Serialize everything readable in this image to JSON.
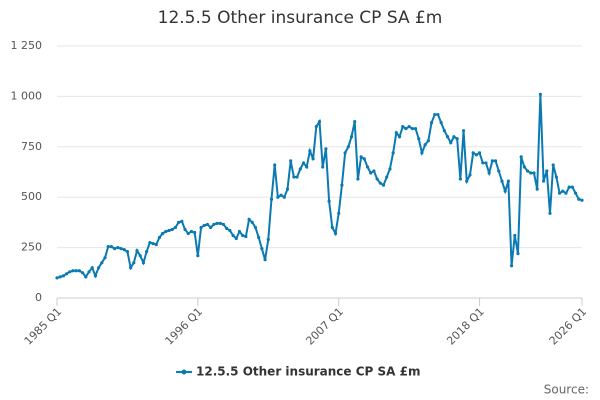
{
  "chart_data": {
    "type": "line",
    "title": "12.5.5 Other insurance CP SA £m",
    "categories": [
      "1985 Q1",
      null,
      null,
      null,
      null,
      null,
      null,
      null,
      null,
      null,
      null,
      null,
      null,
      null,
      null,
      null,
      null,
      null,
      null,
      null,
      null,
      null,
      null,
      null,
      null,
      null,
      null,
      null,
      null,
      null,
      null,
      null,
      null,
      null,
      null,
      null,
      null,
      null,
      null,
      null,
      null,
      null,
      null,
      null,
      "1996 Q1",
      null,
      null,
      null,
      null,
      null,
      null,
      null,
      null,
      null,
      null,
      null,
      null,
      null,
      null,
      null,
      null,
      null,
      null,
      null,
      null,
      null,
      null,
      null,
      null,
      null,
      null,
      null,
      null,
      null,
      null,
      null,
      null,
      null,
      null,
      null,
      null,
      null,
      null,
      null,
      null,
      null,
      null,
      null,
      "2007 Q1",
      null,
      null,
      null,
      null,
      null,
      null,
      null,
      null,
      null,
      null,
      null,
      null,
      null,
      null,
      null,
      null,
      null,
      null,
      null,
      null,
      null,
      null,
      null,
      null,
      null,
      null,
      null,
      null,
      null,
      null,
      null,
      null,
      null,
      null,
      null,
      null,
      null,
      null,
      null,
      null,
      null,
      null,
      null,
      "2018 Q1",
      null,
      null,
      null,
      null,
      null,
      null,
      null,
      null,
      null,
      null,
      null,
      null,
      null,
      null,
      null,
      null,
      null,
      null,
      null,
      null,
      null,
      null,
      null,
      null,
      null,
      null,
      null,
      null,
      null,
      null,
      null,
      "2026 Q1"
    ],
    "series": [
      {
        "name": "12.5.5 Other insurance CP SA £m",
        "color": "#0b7ab3",
        "values": [
          100,
          105,
          110,
          120,
          130,
          135,
          135,
          135,
          125,
          105,
          130,
          150,
          110,
          150,
          175,
          200,
          255,
          255,
          245,
          250,
          245,
          240,
          230,
          150,
          175,
          235,
          210,
          175,
          230,
          275,
          270,
          265,
          300,
          320,
          330,
          335,
          340,
          350,
          375,
          380,
          340,
          320,
          330,
          325,
          210,
          350,
          360,
          365,
          350,
          365,
          370,
          370,
          365,
          345,
          335,
          310,
          295,
          330,
          310,
          305,
          390,
          375,
          350,
          300,
          245,
          190,
          290,
          490,
          660,
          500,
          510,
          500,
          540,
          680,
          600,
          600,
          640,
          670,
          650,
          730,
          690,
          850,
          875,
          650,
          740,
          480,
          350,
          320,
          420,
          560,
          720,
          750,
          800,
          875,
          590,
          700,
          690,
          650,
          620,
          630,
          590,
          570,
          560,
          600,
          640,
          720,
          820,
          800,
          850,
          840,
          850,
          840,
          840,
          790,
          720,
          760,
          780,
          870,
          910,
          910,
          870,
          830,
          800,
          770,
          800,
          790,
          590,
          830,
          580,
          610,
          720,
          710,
          720,
          670,
          670,
          620,
          680,
          680,
          630,
          580,
          530,
          580,
          160,
          310,
          220,
          700,
          650,
          630,
          620,
          620,
          540,
          1010,
          580,
          630,
          420,
          660,
          600,
          520,
          530,
          520,
          550,
          550,
          520,
          490,
          485
        ]
      }
    ],
    "ylim": [
      0,
      1250
    ],
    "yticks": [
      0,
      250,
      500,
      750,
      {
        "value": 1000,
        "label": "1 000"
      },
      {
        "value": 1250,
        "label": "1 250"
      }
    ],
    "grid": true,
    "legend": "bottom",
    "source_label": "Source:"
  }
}
